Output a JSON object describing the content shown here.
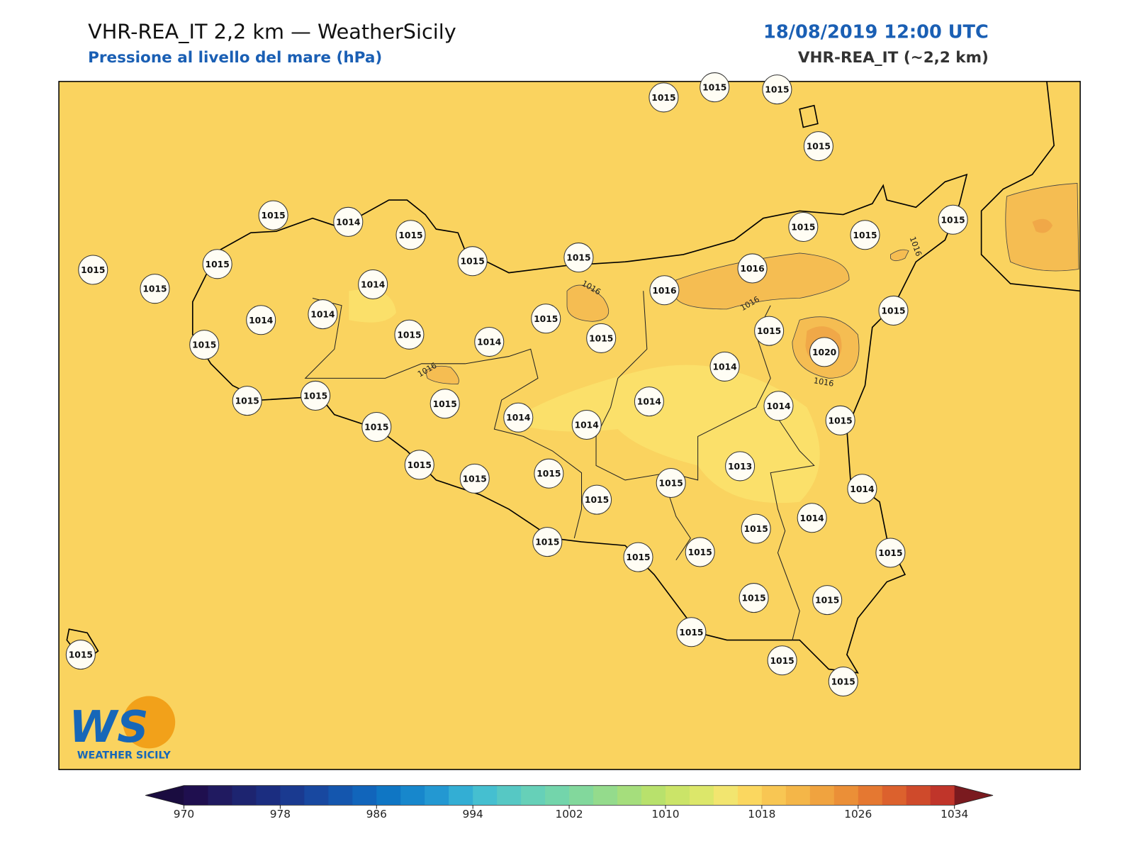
{
  "header": {
    "title": "VHR-REA_IT 2,2 km — WeatherSicily",
    "subtitle": "Pressione al livello del mare (hPa)",
    "datetime": "18/08/2019 12:00 UTC",
    "model": "VHR-REA_IT (~2,2 km)"
  },
  "map": {
    "stations": [
      1015,
      1015,
      1015,
      1015,
      1015,
      1014,
      1015,
      1015,
      1015,
      1015,
      1015,
      1015,
      1015,
      1015,
      1015,
      1016,
      1016,
      1014,
      1014,
      1014,
      1015,
      1015,
      1014,
      1015,
      1015,
      1015,
      1020,
      1015,
      1014,
      1015,
      1015,
      1015,
      1014,
      1014,
      1015,
      1014,
      1014,
      1015,
      1015,
      1015,
      1015,
      1013,
      1015,
      1015,
      1014,
      1014,
      1015,
      1015,
      1015,
      1015,
      1015,
      1015,
      1015,
      1015,
      1015,
      1015,
      1015
    ],
    "contour_labels": [
      1016,
      1016,
      1016,
      1016,
      1016
    ]
  },
  "colorbar": {
    "ticks": [
      970,
      978,
      986,
      994,
      1002,
      1010,
      1018,
      1026,
      1034
    ],
    "colors": [
      "#1f0f4f",
      "#201a60",
      "#1d2470",
      "#1b2d80",
      "#1a3a90",
      "#1848a0",
      "#1456ae",
      "#1165bb",
      "#0f76c4",
      "#1787cc",
      "#2398d2",
      "#33aed4",
      "#45bfd0",
      "#56c8c4",
      "#66d0b8",
      "#73d5ab",
      "#82d89c",
      "#94db8c",
      "#a5de7c",
      "#b8e16c",
      "#cbe468",
      "#dce76a",
      "#f2e56f",
      "#fbd75f",
      "#f8c653",
      "#f4b648",
      "#f0a33f",
      "#eb8f37",
      "#e57831",
      "#dc612d",
      "#cf4a2b",
      "#c0352a"
    ],
    "under_color": "#1a0c40",
    "over_color": "#7a1a1f"
  },
  "logo": {
    "initials": "WS",
    "text": "WEATHER SICILY"
  }
}
